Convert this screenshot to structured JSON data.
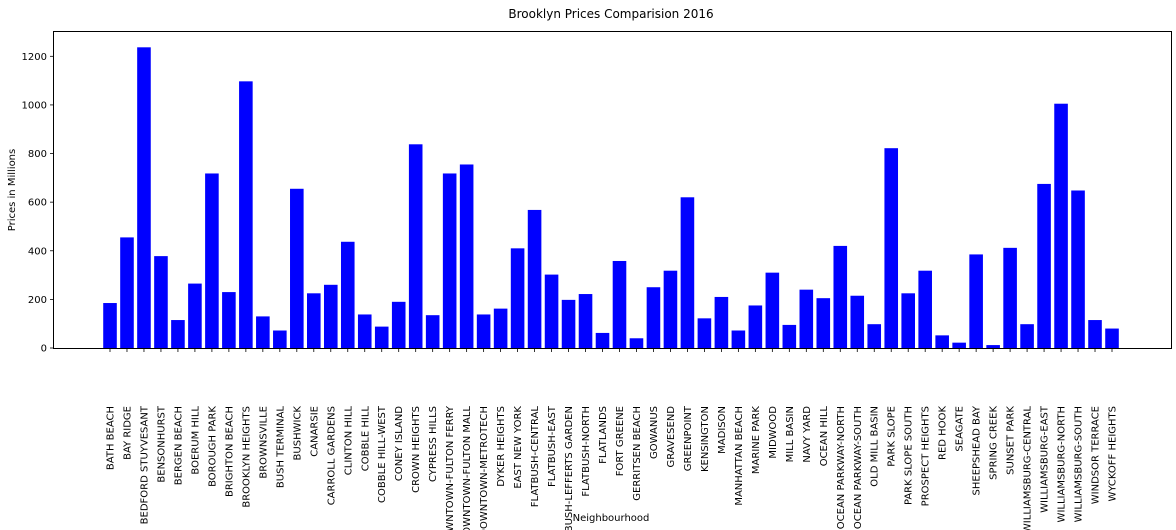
{
  "chart_data": {
    "type": "bar",
    "title": "Brooklyn Prices Comparision 2016",
    "xlabel": "Neighbourhood",
    "ylabel": "Prices in Millions",
    "ylim": [
      0,
      1300
    ],
    "yticks": [
      0,
      200,
      400,
      600,
      800,
      1000,
      1200
    ],
    "bar_color": "#0000ff",
    "grid": false,
    "categories": [
      "BATH BEACH",
      "BAY RIDGE",
      "BEDFORD STUYVESANT",
      "BENSONHURST",
      "BERGEN BEACH",
      "BOERUM HILL",
      "BOROUGH PARK",
      "BRIGHTON BEACH",
      "BROOKLYN HEIGHTS",
      "BROWNSVILLE",
      "BUSH TERMINAL",
      "BUSHWICK",
      "CANARSIE",
      "CARROLL GARDENS",
      "CLINTON HILL",
      "COBBLE HILL",
      "COBBLE HILL-WEST",
      "CONEY ISLAND",
      "CROWN HEIGHTS",
      "CYPRESS HILLS",
      "DOWNTOWN-FULTON FERRY",
      "DOWNTOWN-FULTON MALL",
      "DOWNTOWN-METROTECH",
      "DYKER HEIGHTS",
      "EAST NEW YORK",
      "FLATBUSH-CENTRAL",
      "FLATBUSH-EAST",
      "FLATBUSH-LEFFERTS GARDEN",
      "FLATBUSH-NORTH",
      "FLATLANDS",
      "FORT GREENE",
      "GERRITSEN BEACH",
      "GOWANUS",
      "GRAVESEND",
      "GREENPOINT",
      "KENSINGTON",
      "MADISON",
      "MANHATTAN BEACH",
      "MARINE PARK",
      "MIDWOOD",
      "MILL BASIN",
      "NAVY YARD",
      "OCEAN HILL",
      "OCEAN PARKWAY-NORTH",
      "OCEAN PARKWAY-SOUTH",
      "OLD MILL BASIN",
      "PARK SLOPE",
      "PARK SLOPE SOUTH",
      "PROSPECT HEIGHTS",
      "RED HOOK",
      "SEAGATE",
      "SHEEPSHEAD BAY",
      "SPRING CREEK",
      "SUNSET PARK",
      "WILLIAMSBURG-CENTRAL",
      "WILLIAMSBURG-EAST",
      "WILLIAMSBURG-NORTH",
      "WILLIAMSBURG-SOUTH",
      "WINDSOR TERRACE",
      "WYCKOFF HEIGHTS"
    ],
    "values": [
      185,
      455,
      1237,
      378,
      115,
      265,
      718,
      230,
      1097,
      130,
      72,
      655,
      225,
      260,
      437,
      138,
      88,
      190,
      838,
      135,
      718,
      755,
      138,
      162,
      410,
      568,
      302,
      198,
      222,
      62,
      358,
      40,
      250,
      318,
      620,
      122,
      210,
      72,
      175,
      310,
      95,
      240,
      205,
      420,
      215,
      98,
      822,
      225,
      318,
      52,
      22,
      385,
      12,
      412,
      98,
      675,
      1005,
      648,
      115,
      80
    ]
  }
}
